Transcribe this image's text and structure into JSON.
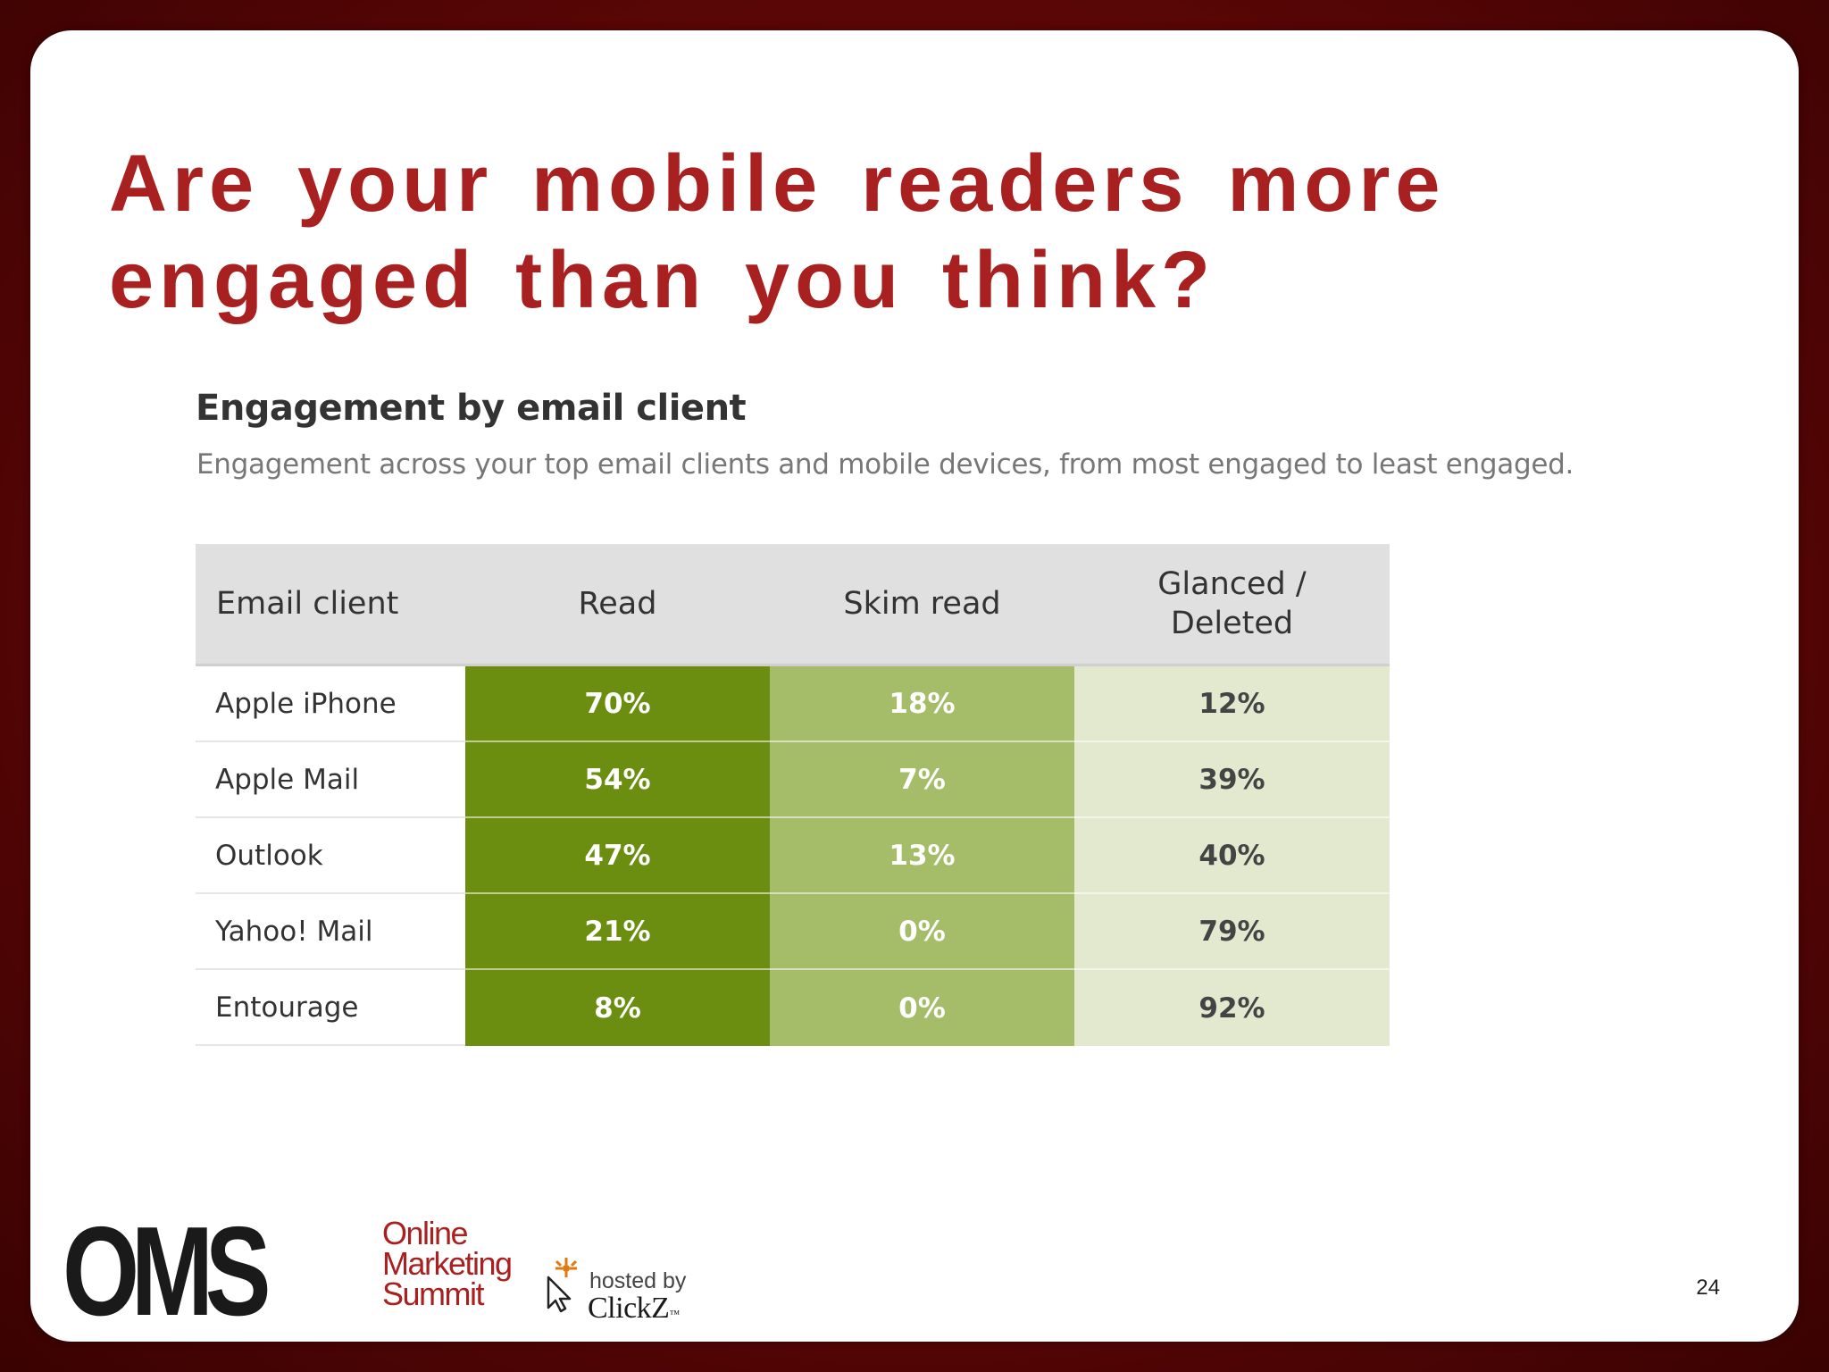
{
  "slide": {
    "title_line1": "Are your mobile readers more",
    "title_line2": "engaged than you think?",
    "page_number": "24"
  },
  "engagement": {
    "heading": "Engagement by email client",
    "subheading": "Engagement across your top email clients and mobile devices, from most engaged to least engaged."
  },
  "table": {
    "headers": [
      "Email client",
      "Read",
      "Skim read",
      "Glanced / Deleted"
    ],
    "header_glanced_line1": "Glanced /",
    "header_glanced_line2": "Deleted",
    "rows": [
      {
        "client": "Apple iPhone",
        "read": "70%",
        "skim": "18%",
        "glanced": "12%"
      },
      {
        "client": "Apple Mail",
        "read": "54%",
        "skim": "7%",
        "glanced": "39%"
      },
      {
        "client": "Outlook",
        "read": "47%",
        "skim": "13%",
        "glanced": "40%"
      },
      {
        "client": "Yahoo! Mail",
        "read": "21%",
        "skim": "0%",
        "glanced": "79%"
      },
      {
        "client": "Entourage",
        "read": "8%",
        "skim": "0%",
        "glanced": "92%"
      }
    ]
  },
  "logo": {
    "oms": "OMS",
    "word1": "Online",
    "word2": "Marketing",
    "word3": "Summit",
    "hosted_by": "hosted by",
    "clickz": "ClickZ",
    "trademark": "™"
  },
  "colors": {
    "title_red": "#a8201f",
    "read_green": "#6b8e10",
    "skim_green": "#a5bc68",
    "glanced_green": "#e2e9cf",
    "header_gray": "#e0e0e0",
    "frame_red": "#6e0808"
  }
}
